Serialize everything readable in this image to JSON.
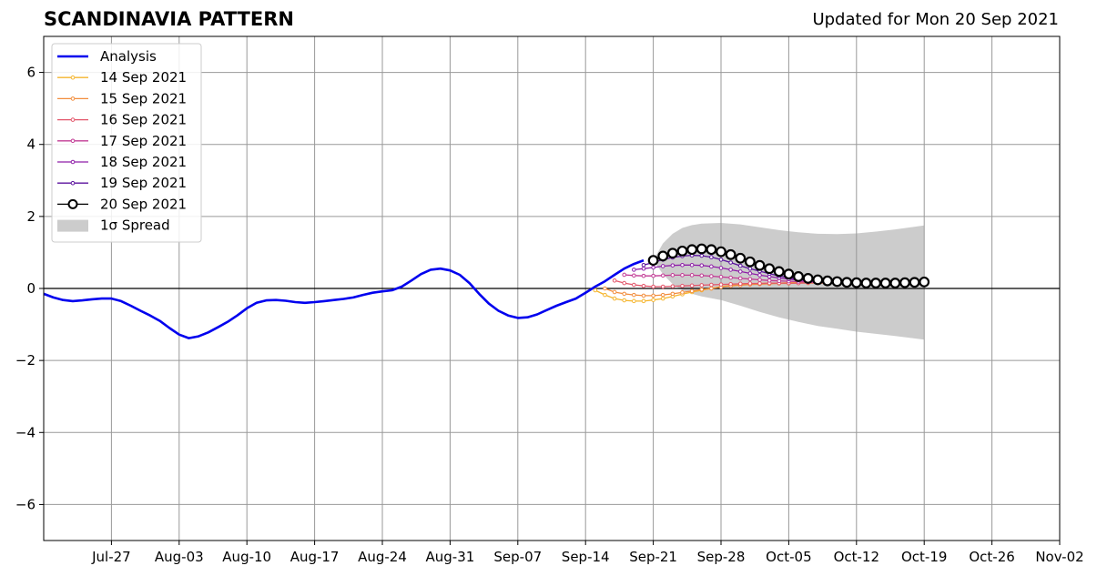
{
  "chart_data": {
    "type": "line",
    "title": "SCANDINAVIA PATTERN",
    "subtitle": "Updated for Mon 20 Sep 2021",
    "x_start": "2021-07-20",
    "x_end": "2021-11-02",
    "x_ticks": [
      {
        "date": "2021-07-27",
        "label": "Jul-27"
      },
      {
        "date": "2021-08-03",
        "label": "Aug-03"
      },
      {
        "date": "2021-08-10",
        "label": "Aug-10"
      },
      {
        "date": "2021-08-17",
        "label": "Aug-17"
      },
      {
        "date": "2021-08-24",
        "label": "Aug-24"
      },
      {
        "date": "2021-08-31",
        "label": "Aug-31"
      },
      {
        "date": "2021-09-07",
        "label": "Sep-07"
      },
      {
        "date": "2021-09-14",
        "label": "Sep-14"
      },
      {
        "date": "2021-09-21",
        "label": "Sep-21"
      },
      {
        "date": "2021-09-28",
        "label": "Sep-28"
      },
      {
        "date": "2021-10-05",
        "label": "Oct-05"
      },
      {
        "date": "2021-10-12",
        "label": "Oct-12"
      },
      {
        "date": "2021-10-19",
        "label": "Oct-19"
      },
      {
        "date": "2021-10-26",
        "label": "Oct-26"
      },
      {
        "date": "2021-11-02",
        "label": "Nov-02"
      }
    ],
    "ylim": [
      -7,
      7
    ],
    "y_ticks": [
      {
        "value": 6,
        "label": "6"
      },
      {
        "value": 4,
        "label": "4"
      },
      {
        "value": 2,
        "label": "2"
      },
      {
        "value": 0,
        "label": "0"
      },
      {
        "value": -2,
        "label": "−2"
      },
      {
        "value": -4,
        "label": "−4"
      },
      {
        "value": -6,
        "label": "−6"
      }
    ],
    "grid": true,
    "legend_position": "top-left",
    "analysis": {
      "name": "Analysis",
      "color": "#0000ee",
      "points": [
        [
          "2021-07-20",
          -0.15
        ],
        [
          "2021-07-21",
          -0.25
        ],
        [
          "2021-07-22",
          -0.32
        ],
        [
          "2021-07-23",
          -0.35
        ],
        [
          "2021-07-24",
          -0.33
        ],
        [
          "2021-07-25",
          -0.3
        ],
        [
          "2021-07-26",
          -0.28
        ],
        [
          "2021-07-27",
          -0.28
        ],
        [
          "2021-07-28",
          -0.35
        ],
        [
          "2021-07-29",
          -0.48
        ],
        [
          "2021-07-30",
          -0.62
        ],
        [
          "2021-07-31",
          -0.75
        ],
        [
          "2021-08-01",
          -0.9
        ],
        [
          "2021-08-02",
          -1.1
        ],
        [
          "2021-08-03",
          -1.28
        ],
        [
          "2021-08-04",
          -1.38
        ],
        [
          "2021-08-05",
          -1.33
        ],
        [
          "2021-08-06",
          -1.22
        ],
        [
          "2021-08-07",
          -1.08
        ],
        [
          "2021-08-08",
          -0.93
        ],
        [
          "2021-08-09",
          -0.75
        ],
        [
          "2021-08-10",
          -0.55
        ],
        [
          "2021-08-11",
          -0.4
        ],
        [
          "2021-08-12",
          -0.33
        ],
        [
          "2021-08-13",
          -0.32
        ],
        [
          "2021-08-14",
          -0.34
        ],
        [
          "2021-08-15",
          -0.38
        ],
        [
          "2021-08-16",
          -0.4
        ],
        [
          "2021-08-17",
          -0.38
        ],
        [
          "2021-08-18",
          -0.35
        ],
        [
          "2021-08-19",
          -0.32
        ],
        [
          "2021-08-20",
          -0.29
        ],
        [
          "2021-08-21",
          -0.25
        ],
        [
          "2021-08-22",
          -0.18
        ],
        [
          "2021-08-23",
          -0.12
        ],
        [
          "2021-08-24",
          -0.08
        ],
        [
          "2021-08-25",
          -0.05
        ],
        [
          "2021-08-26",
          0.05
        ],
        [
          "2021-08-27",
          0.22
        ],
        [
          "2021-08-28",
          0.4
        ],
        [
          "2021-08-29",
          0.52
        ],
        [
          "2021-08-30",
          0.55
        ],
        [
          "2021-08-31",
          0.5
        ],
        [
          "2021-09-01",
          0.38
        ],
        [
          "2021-09-02",
          0.15
        ],
        [
          "2021-09-03",
          -0.15
        ],
        [
          "2021-09-04",
          -0.42
        ],
        [
          "2021-09-05",
          -0.62
        ],
        [
          "2021-09-06",
          -0.75
        ],
        [
          "2021-09-07",
          -0.82
        ],
        [
          "2021-09-08",
          -0.8
        ],
        [
          "2021-09-09",
          -0.72
        ],
        [
          "2021-09-10",
          -0.6
        ],
        [
          "2021-09-11",
          -0.48
        ],
        [
          "2021-09-12",
          -0.38
        ],
        [
          "2021-09-13",
          -0.28
        ],
        [
          "2021-09-14",
          -0.12
        ],
        [
          "2021-09-15",
          0.05
        ],
        [
          "2021-09-16",
          0.2
        ],
        [
          "2021-09-17",
          0.38
        ],
        [
          "2021-09-18",
          0.55
        ],
        [
          "2021-09-19",
          0.68
        ],
        [
          "2021-09-20",
          0.78
        ]
      ]
    },
    "forecasts": [
      {
        "name": "14 Sep 2021",
        "color": "#f5b52e",
        "points": [
          [
            "2021-09-15",
            -0.05
          ],
          [
            "2021-09-16",
            -0.18
          ],
          [
            "2021-09-17",
            -0.28
          ],
          [
            "2021-09-18",
            -0.33
          ],
          [
            "2021-09-19",
            -0.35
          ],
          [
            "2021-09-20",
            -0.35
          ],
          [
            "2021-09-21",
            -0.32
          ],
          [
            "2021-09-22",
            -0.28
          ],
          [
            "2021-09-23",
            -0.22
          ],
          [
            "2021-09-24",
            -0.16
          ],
          [
            "2021-09-25",
            -0.1
          ],
          [
            "2021-09-26",
            -0.05
          ],
          [
            "2021-09-27",
            0.0
          ],
          [
            "2021-09-28",
            0.05
          ],
          [
            "2021-09-29",
            0.08
          ],
          [
            "2021-09-30",
            0.1
          ],
          [
            "2021-10-01",
            0.12
          ],
          [
            "2021-10-02",
            0.14
          ],
          [
            "2021-10-03",
            0.15
          ],
          [
            "2021-10-04",
            0.15
          ],
          [
            "2021-10-05",
            0.16
          ],
          [
            "2021-10-06",
            0.16
          ],
          [
            "2021-10-07",
            0.16
          ],
          [
            "2021-10-08",
            0.16
          ]
        ]
      },
      {
        "name": "15 Sep 2021",
        "color": "#f28d3d",
        "points": [
          [
            "2021-09-16",
            0.0
          ],
          [
            "2021-09-17",
            -0.1
          ],
          [
            "2021-09-18",
            -0.15
          ],
          [
            "2021-09-19",
            -0.18
          ],
          [
            "2021-09-20",
            -0.2
          ],
          [
            "2021-09-21",
            -0.2
          ],
          [
            "2021-09-22",
            -0.18
          ],
          [
            "2021-09-23",
            -0.15
          ],
          [
            "2021-09-24",
            -0.11
          ],
          [
            "2021-09-25",
            -0.07
          ],
          [
            "2021-09-26",
            -0.03
          ],
          [
            "2021-09-27",
            0.0
          ],
          [
            "2021-09-28",
            0.04
          ],
          [
            "2021-09-29",
            0.07
          ],
          [
            "2021-09-30",
            0.09
          ],
          [
            "2021-10-01",
            0.11
          ],
          [
            "2021-10-02",
            0.12
          ],
          [
            "2021-10-03",
            0.13
          ],
          [
            "2021-10-04",
            0.14
          ],
          [
            "2021-10-05",
            0.14
          ],
          [
            "2021-10-06",
            0.15
          ],
          [
            "2021-10-07",
            0.15
          ],
          [
            "2021-10-08",
            0.15
          ],
          [
            "2021-10-09",
            0.15
          ]
        ]
      },
      {
        "name": "16 Sep 2021",
        "color": "#e3566b",
        "points": [
          [
            "2021-09-17",
            0.22
          ],
          [
            "2021-09-18",
            0.15
          ],
          [
            "2021-09-19",
            0.1
          ],
          [
            "2021-09-20",
            0.07
          ],
          [
            "2021-09-21",
            0.05
          ],
          [
            "2021-09-22",
            0.05
          ],
          [
            "2021-09-23",
            0.06
          ],
          [
            "2021-09-24",
            0.07
          ],
          [
            "2021-09-25",
            0.08
          ],
          [
            "2021-09-26",
            0.09
          ],
          [
            "2021-09-27",
            0.1
          ],
          [
            "2021-09-28",
            0.11
          ],
          [
            "2021-09-29",
            0.12
          ],
          [
            "2021-09-30",
            0.13
          ],
          [
            "2021-10-01",
            0.14
          ],
          [
            "2021-10-02",
            0.14
          ],
          [
            "2021-10-03",
            0.15
          ],
          [
            "2021-10-04",
            0.15
          ],
          [
            "2021-10-05",
            0.15
          ],
          [
            "2021-10-06",
            0.15
          ],
          [
            "2021-10-07",
            0.16
          ],
          [
            "2021-10-08",
            0.16
          ],
          [
            "2021-10-09",
            0.16
          ],
          [
            "2021-10-10",
            0.16
          ]
        ]
      },
      {
        "name": "17 Sep 2021",
        "color": "#c23b95",
        "points": [
          [
            "2021-09-18",
            0.38
          ],
          [
            "2021-09-19",
            0.36
          ],
          [
            "2021-09-20",
            0.35
          ],
          [
            "2021-09-21",
            0.35
          ],
          [
            "2021-09-22",
            0.36
          ],
          [
            "2021-09-23",
            0.37
          ],
          [
            "2021-09-24",
            0.37
          ],
          [
            "2021-09-25",
            0.37
          ],
          [
            "2021-09-26",
            0.36
          ],
          [
            "2021-09-27",
            0.34
          ],
          [
            "2021-09-28",
            0.32
          ],
          [
            "2021-09-29",
            0.3
          ],
          [
            "2021-09-30",
            0.28
          ],
          [
            "2021-10-01",
            0.26
          ],
          [
            "2021-10-02",
            0.24
          ],
          [
            "2021-10-03",
            0.22
          ],
          [
            "2021-10-04",
            0.21
          ],
          [
            "2021-10-05",
            0.2
          ],
          [
            "2021-10-06",
            0.19
          ],
          [
            "2021-10-07",
            0.18
          ],
          [
            "2021-10-08",
            0.17
          ],
          [
            "2021-10-09",
            0.17
          ],
          [
            "2021-10-10",
            0.16
          ],
          [
            "2021-10-11",
            0.16
          ]
        ]
      },
      {
        "name": "18 Sep 2021",
        "color": "#8e1ea8",
        "points": [
          [
            "2021-09-19",
            0.52
          ],
          [
            "2021-09-20",
            0.55
          ],
          [
            "2021-09-21",
            0.58
          ],
          [
            "2021-09-22",
            0.62
          ],
          [
            "2021-09-23",
            0.64
          ],
          [
            "2021-09-24",
            0.65
          ],
          [
            "2021-09-25",
            0.65
          ],
          [
            "2021-09-26",
            0.64
          ],
          [
            "2021-09-27",
            0.61
          ],
          [
            "2021-09-28",
            0.57
          ],
          [
            "2021-09-29",
            0.52
          ],
          [
            "2021-09-30",
            0.47
          ],
          [
            "2021-10-01",
            0.42
          ],
          [
            "2021-10-02",
            0.37
          ],
          [
            "2021-10-03",
            0.33
          ],
          [
            "2021-10-04",
            0.29
          ],
          [
            "2021-10-05",
            0.26
          ],
          [
            "2021-10-06",
            0.23
          ],
          [
            "2021-10-07",
            0.21
          ],
          [
            "2021-10-08",
            0.19
          ],
          [
            "2021-10-09",
            0.18
          ],
          [
            "2021-10-10",
            0.17
          ],
          [
            "2021-10-11",
            0.16
          ],
          [
            "2021-10-12",
            0.16
          ]
        ]
      },
      {
        "name": "19 Sep 2021",
        "color": "#5b139e",
        "points": [
          [
            "2021-09-20",
            0.65
          ],
          [
            "2021-09-21",
            0.72
          ],
          [
            "2021-09-22",
            0.8
          ],
          [
            "2021-09-23",
            0.86
          ],
          [
            "2021-09-24",
            0.9
          ],
          [
            "2021-09-25",
            0.92
          ],
          [
            "2021-09-26",
            0.91
          ],
          [
            "2021-09-27",
            0.87
          ],
          [
            "2021-09-28",
            0.8
          ],
          [
            "2021-09-29",
            0.72
          ],
          [
            "2021-09-30",
            0.63
          ],
          [
            "2021-10-01",
            0.55
          ],
          [
            "2021-10-02",
            0.48
          ],
          [
            "2021-10-03",
            0.41
          ],
          [
            "2021-10-04",
            0.35
          ],
          [
            "2021-10-05",
            0.3
          ],
          [
            "2021-10-06",
            0.26
          ],
          [
            "2021-10-07",
            0.23
          ],
          [
            "2021-10-08",
            0.21
          ],
          [
            "2021-10-09",
            0.19
          ],
          [
            "2021-10-10",
            0.18
          ],
          [
            "2021-10-11",
            0.17
          ],
          [
            "2021-10-12",
            0.16
          ],
          [
            "2021-10-13",
            0.16
          ]
        ]
      },
      {
        "name": "20 Sep 2021",
        "color": "#000000",
        "current": true,
        "points": [
          [
            "2021-09-21",
            0.78
          ],
          [
            "2021-09-22",
            0.9
          ],
          [
            "2021-09-23",
            0.98
          ],
          [
            "2021-09-24",
            1.04
          ],
          [
            "2021-09-25",
            1.08
          ],
          [
            "2021-09-26",
            1.1
          ],
          [
            "2021-09-27",
            1.08
          ],
          [
            "2021-09-28",
            1.02
          ],
          [
            "2021-09-29",
            0.94
          ],
          [
            "2021-09-30",
            0.84
          ],
          [
            "2021-10-01",
            0.74
          ],
          [
            "2021-10-02",
            0.64
          ],
          [
            "2021-10-03",
            0.55
          ],
          [
            "2021-10-04",
            0.47
          ],
          [
            "2021-10-05",
            0.4
          ],
          [
            "2021-10-06",
            0.33
          ],
          [
            "2021-10-07",
            0.28
          ],
          [
            "2021-10-08",
            0.24
          ],
          [
            "2021-10-09",
            0.21
          ],
          [
            "2021-10-10",
            0.19
          ],
          [
            "2021-10-11",
            0.17
          ],
          [
            "2021-10-12",
            0.16
          ],
          [
            "2021-10-13",
            0.15
          ],
          [
            "2021-10-14",
            0.15
          ],
          [
            "2021-10-15",
            0.15
          ],
          [
            "2021-10-16",
            0.15
          ],
          [
            "2021-10-17",
            0.16
          ],
          [
            "2021-10-18",
            0.17
          ],
          [
            "2021-10-19",
            0.18
          ]
        ]
      }
    ],
    "spread": {
      "name": "1σ Spread",
      "color": "#cccccc",
      "points": [
        [
          "2021-09-21",
          0.78,
          0.78
        ],
        [
          "2021-09-22",
          1.25,
          0.4
        ],
        [
          "2021-09-23",
          1.52,
          0.12
        ],
        [
          "2021-09-24",
          1.68,
          -0.05
        ],
        [
          "2021-09-25",
          1.76,
          -0.15
        ],
        [
          "2021-09-26",
          1.8,
          -0.22
        ],
        [
          "2021-09-28",
          1.82,
          -0.32
        ],
        [
          "2021-09-30",
          1.78,
          -0.48
        ],
        [
          "2021-10-02",
          1.7,
          -0.65
        ],
        [
          "2021-10-04",
          1.62,
          -0.8
        ],
        [
          "2021-10-06",
          1.56,
          -0.93
        ],
        [
          "2021-10-08",
          1.52,
          -1.04
        ],
        [
          "2021-10-10",
          1.51,
          -1.12
        ],
        [
          "2021-10-12",
          1.53,
          -1.2
        ],
        [
          "2021-10-14",
          1.58,
          -1.26
        ],
        [
          "2021-10-16",
          1.64,
          -1.32
        ],
        [
          "2021-10-19",
          1.75,
          -1.42
        ]
      ]
    }
  }
}
